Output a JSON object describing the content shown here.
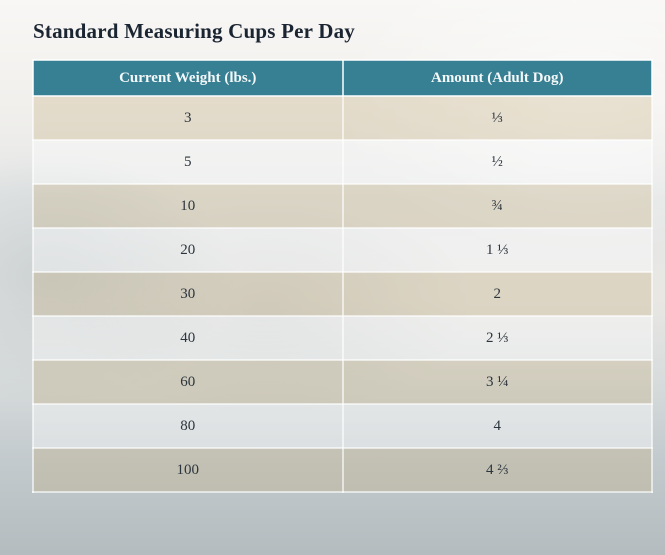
{
  "page": {
    "title": "Standard Measuring Cups Per Day"
  },
  "table": {
    "columns": [
      "Current Weight (lbs.)",
      "Amount (Adult Dog)"
    ],
    "rows": [
      [
        "3",
        "⅓"
      ],
      [
        "5",
        "½"
      ],
      [
        "10",
        "¾"
      ],
      [
        "20",
        "1 ⅓"
      ],
      [
        "30",
        "2"
      ],
      [
        "40",
        "2 ⅓"
      ],
      [
        "60",
        "3 ¼"
      ],
      [
        "80",
        "4"
      ],
      [
        "100",
        "4 ⅔"
      ]
    ]
  },
  "colors": {
    "header_bg": "#377f93",
    "header_text": "#f4f8f9",
    "title_text": "#1b2531",
    "cell_text": "#2c353d",
    "odd_row_overlay": "rgba(197,173,123,0.30)",
    "even_row_overlay": "rgba(255,255,255,0.38)",
    "background_top": "#f8f7f5",
    "background_bottom": "#b4bcbf"
  },
  "chart_data": {
    "type": "table",
    "title": "Standard Measuring Cups Per Day",
    "columns": [
      "Current Weight (lbs.)",
      "Amount (Adult Dog)"
    ],
    "rows": [
      [
        "3",
        "⅓"
      ],
      [
        "5",
        "½"
      ],
      [
        "10",
        "¾"
      ],
      [
        "20",
        "1 ⅓"
      ],
      [
        "30",
        "2"
      ],
      [
        "40",
        "2 ⅓"
      ],
      [
        "60",
        "3 ¼"
      ],
      [
        "80",
        "4"
      ],
      [
        "100",
        "4 ⅔"
      ]
    ]
  }
}
